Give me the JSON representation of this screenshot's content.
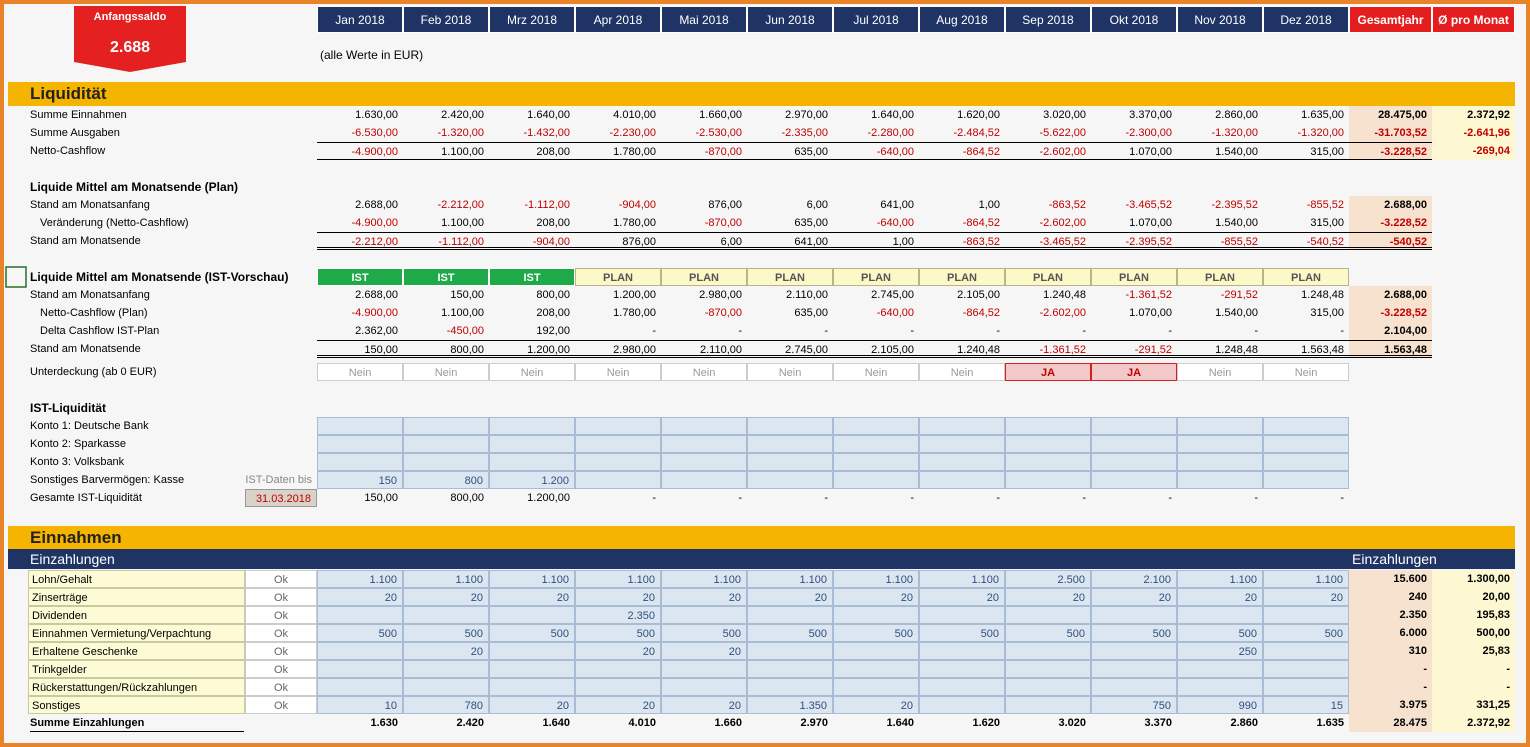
{
  "header": {
    "anfangssaldo_label": "Anfangssaldo",
    "anfangssaldo": "2.688",
    "months": [
      "Jan 2018",
      "Feb 2018",
      "Mrz 2018",
      "Apr 2018",
      "Mai 2018",
      "Jun 2018",
      "Jul 2018",
      "Aug 2018",
      "Sep 2018",
      "Okt 2018",
      "Nov 2018",
      "Dez 2018"
    ],
    "total_label": "Gesamtjahr",
    "avg_label": "Ø pro Monat",
    "note": "(alle Werte in EUR)"
  },
  "liquiditaet": {
    "title": "Liquidität",
    "rows": [
      {
        "label": "Summe Einnahmen",
        "values": [
          "1.630,00",
          "2.420,00",
          "1.640,00",
          "4.010,00",
          "1.660,00",
          "2.970,00",
          "1.640,00",
          "1.620,00",
          "3.020,00",
          "3.370,00",
          "2.860,00",
          "1.635,00"
        ],
        "total": "28.475,00",
        "avg": "2.372,92"
      },
      {
        "label": "Summe Ausgaben",
        "values": [
          "-6.530,00",
          "-1.320,00",
          "-1.432,00",
          "-2.230,00",
          "-2.530,00",
          "-2.335,00",
          "-2.280,00",
          "-2.484,52",
          "-5.622,00",
          "-2.300,00",
          "-1.320,00",
          "-1.320,00"
        ],
        "total": "-31.703,52",
        "avg": "-2.641,96"
      },
      {
        "label": "Netto-Cashflow",
        "values": [
          "-4.900,00",
          "1.100,00",
          "208,00",
          "1.780,00",
          "-870,00",
          "635,00",
          "-640,00",
          "-864,52",
          "-2.602,00",
          "1.070,00",
          "1.540,00",
          "315,00"
        ],
        "total": "-3.228,52",
        "avg": "-269,04"
      }
    ]
  },
  "plan": {
    "title": "Liquide Mittel am Monatsende (Plan)",
    "rows": [
      {
        "label": "Stand am Monatsanfang",
        "values": [
          "2.688,00",
          "-2.212,00",
          "-1.112,00",
          "-904,00",
          "876,00",
          "6,00",
          "641,00",
          "1,00",
          "-863,52",
          "-3.465,52",
          "-2.395,52",
          "-855,52"
        ],
        "total": "2.688,00"
      },
      {
        "label": "Veränderung (Netto-Cashflow)",
        "values": [
          "-4.900,00",
          "1.100,00",
          "208,00",
          "1.780,00",
          "-870,00",
          "635,00",
          "-640,00",
          "-864,52",
          "-2.602,00",
          "1.070,00",
          "1.540,00",
          "315,00"
        ],
        "total": "-3.228,52"
      },
      {
        "label": "Stand am Monatsende",
        "values": [
          "-2.212,00",
          "-1.112,00",
          "-904,00",
          "876,00",
          "6,00",
          "641,00",
          "1,00",
          "-863,52",
          "-3.465,52",
          "-2.395,52",
          "-855,52",
          "-540,52"
        ],
        "total": "-540,52"
      }
    ]
  },
  "ist_vorschau": {
    "title": "Liquide Mittel am Monatsende (IST-Vorschau)",
    "status": [
      "IST",
      "IST",
      "IST",
      "PLAN",
      "PLAN",
      "PLAN",
      "PLAN",
      "PLAN",
      "PLAN",
      "PLAN",
      "PLAN",
      "PLAN"
    ],
    "rows": [
      {
        "label": "Stand am Monatsanfang",
        "values": [
          "2.688,00",
          "150,00",
          "800,00",
          "1.200,00",
          "2.980,00",
          "2.110,00",
          "2.745,00",
          "2.105,00",
          "1.240,48",
          "-1.361,52",
          "-291,52",
          "1.248,48"
        ],
        "total": "2.688,00"
      },
      {
        "label": "Netto-Cashflow (Plan)",
        "values": [
          "-4.900,00",
          "1.100,00",
          "208,00",
          "1.780,00",
          "-870,00",
          "635,00",
          "-640,00",
          "-864,52",
          "-2.602,00",
          "1.070,00",
          "1.540,00",
          "315,00"
        ],
        "total": "-3.228,52"
      },
      {
        "label": "Delta Cashflow IST-Plan",
        "values": [
          "2.362,00",
          "-450,00",
          "192,00",
          "-",
          "-",
          "-",
          "-",
          "-",
          "-",
          "-",
          "-",
          "-"
        ],
        "total": "2.104,00"
      },
      {
        "label": "Stand am Monatsende",
        "values": [
          "150,00",
          "800,00",
          "1.200,00",
          "2.980,00",
          "2.110,00",
          "2.745,00",
          "2.105,00",
          "1.240,48",
          "-1.361,52",
          "-291,52",
          "1.248,48",
          "1.563,48"
        ],
        "total": "1.563,48"
      }
    ],
    "unterdeckung": {
      "label": "Unterdeckung (ab 0  EUR)",
      "values": [
        "Nein",
        "Nein",
        "Nein",
        "Nein",
        "Nein",
        "Nein",
        "Nein",
        "Nein",
        "JA",
        "JA",
        "Nein",
        "Nein"
      ]
    }
  },
  "ist_liquiditaet": {
    "title": "IST-Liquidität",
    "rows": [
      {
        "label": "Konto 1: Deutsche Bank",
        "values": [
          null,
          null,
          null,
          null,
          null,
          null,
          null,
          null,
          null,
          null,
          null,
          null
        ]
      },
      {
        "label": "Konto 2: Sparkasse",
        "values": [
          null,
          null,
          null,
          null,
          null,
          null,
          null,
          null,
          null,
          null,
          null,
          null
        ]
      },
      {
        "label": "Konto 3: Volksbank",
        "values": [
          null,
          null,
          null,
          null,
          null,
          null,
          null,
          null,
          null,
          null,
          null,
          null
        ]
      },
      {
        "label": "Sonstiges Barvermögen: Kasse",
        "extra": "IST-Daten bis",
        "values": [
          "150",
          "800",
          "1.200",
          null,
          null,
          null,
          null,
          null,
          null,
          null,
          null,
          null
        ]
      },
      {
        "label": "Gesamte IST-Liquidität",
        "extra": "31.03.2018",
        "values": [
          "150,00",
          "800,00",
          "1.200,00",
          "-",
          "-",
          "-",
          "-",
          "-",
          "-",
          "-",
          "-",
          "-"
        ]
      }
    ]
  },
  "einnahmen": {
    "title": "Einnahmen",
    "header_left": "Einzahlungen",
    "header_right": "Einzahlungen",
    "rows": [
      {
        "label": "Lohn/Gehalt",
        "extra": "Ok",
        "values": [
          "1.100",
          "1.100",
          "1.100",
          "1.100",
          "1.100",
          "1.100",
          "1.100",
          "1.100",
          "2.500",
          "2.100",
          "1.100",
          "1.100"
        ],
        "total": "15.600",
        "avg": "1.300,00"
      },
      {
        "label": "Zinserträge",
        "extra": "Ok",
        "values": [
          "20",
          "20",
          "20",
          "20",
          "20",
          "20",
          "20",
          "20",
          "20",
          "20",
          "20",
          "20"
        ],
        "total": "240",
        "avg": "20,00"
      },
      {
        "label": "Dividenden",
        "extra": "Ok",
        "values": [
          null,
          null,
          null,
          "2.350",
          null,
          null,
          null,
          null,
          null,
          null,
          null,
          null
        ],
        "total": "2.350",
        "avg": "195,83"
      },
      {
        "label": "Einnahmen Vermietung/Verpachtung",
        "extra": "Ok",
        "values": [
          "500",
          "500",
          "500",
          "500",
          "500",
          "500",
          "500",
          "500",
          "500",
          "500",
          "500",
          "500"
        ],
        "total": "6.000",
        "avg": "500,00"
      },
      {
        "label": "Erhaltene Geschenke",
        "extra": "Ok",
        "values": [
          null,
          "20",
          null,
          "20",
          "20",
          null,
          null,
          null,
          null,
          null,
          "250",
          null
        ],
        "total": "310",
        "avg": "25,83"
      },
      {
        "label": "Trinkgelder",
        "extra": "Ok",
        "values": [
          null,
          null,
          null,
          null,
          null,
          null,
          null,
          null,
          null,
          null,
          null,
          null
        ],
        "total": "-",
        "avg": "-"
      },
      {
        "label": "Rückerstattungen/Rückzahlungen",
        "extra": "Ok",
        "values": [
          null,
          null,
          null,
          null,
          null,
          null,
          null,
          null,
          null,
          null,
          null,
          null
        ],
        "total": "-",
        "avg": "-"
      },
      {
        "label": "Sonstiges",
        "extra": "Ok",
        "values": [
          "10",
          "780",
          "20",
          "20",
          "20",
          "1.350",
          "20",
          null,
          null,
          "750",
          "990",
          "15"
        ],
        "total": "3.975",
        "avg": "331,25"
      }
    ],
    "sum": {
      "label": "Summe Einzahlungen",
      "values": [
        "1.630",
        "2.420",
        "1.640",
        "4.010",
        "1.660",
        "2.970",
        "1.640",
        "1.620",
        "3.020",
        "3.370",
        "2.860",
        "1.635"
      ],
      "total": "28.475",
      "avg": "2.372,92"
    }
  }
}
